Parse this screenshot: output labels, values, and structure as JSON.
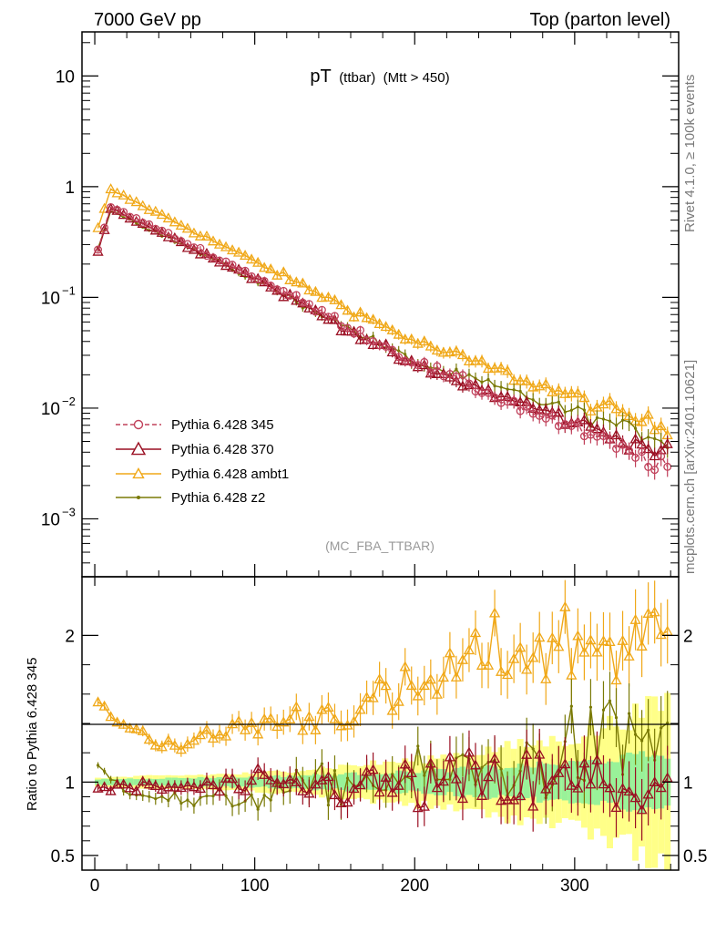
{
  "header": {
    "left": "7000 GeV pp",
    "right": "Top (parton level)",
    "side_top": "Rivet 4.1.0, ≥ 100k events",
    "side_bottom": "mcplots.cern.ch [arXiv:2401.10621]"
  },
  "chart_data": {
    "type": "line",
    "title_main": "pT",
    "title_sub": "(ttbar)",
    "title_cut": "(Mtt > 450)",
    "analysis_tag": "(MC_FBA_TTBAR)",
    "xlabel": "",
    "ylabel_ratio": "Ratio to Pythia 6.428 345",
    "xlim": [
      -8,
      365
    ],
    "ylim_main": [
      0.0003,
      25
    ],
    "ylim_ratio": [
      0.4,
      2.4
    ],
    "x_ticks": [
      {
        "value": 0,
        "label": "0"
      },
      {
        "value": 100,
        "label": "100"
      },
      {
        "value": 200,
        "label": "200"
      },
      {
        "value": 300,
        "label": "300"
      }
    ],
    "y_ticks_main": [
      {
        "value": 10,
        "label": "10",
        "exp": ""
      },
      {
        "value": 1,
        "label": "1",
        "exp": ""
      },
      {
        "value": 0.1,
        "label": "10",
        "exp": "−1"
      },
      {
        "value": 0.01,
        "label": "10",
        "exp": "−2"
      },
      {
        "value": 0.001,
        "label": "10",
        "exp": "−3"
      }
    ],
    "y_ticks_ratio": [
      {
        "value": 2,
        "label": "2"
      },
      {
        "value": 1,
        "label": "1"
      },
      {
        "value": 0.5,
        "label": "0.5"
      }
    ],
    "colors": {
      "s345": "#c0405a",
      "s370": "#9a0f22",
      "ambt1": "#f0a818",
      "z2": "#7a7a06",
      "band_inner": "#99f299",
      "band_outer": "#ffff88"
    },
    "legend": [
      {
        "key": "s345",
        "name": "Pythia 6.428 345"
      },
      {
        "key": "s370",
        "name": "Pythia 6.428 370"
      },
      {
        "key": "ambt1",
        "name": "Pythia 6.428 ambt1"
      },
      {
        "key": "z2",
        "name": "Pythia 6.428 z2"
      }
    ],
    "bin_width": 4,
    "x_first": 2,
    "main_shape": {
      "note": "dsigma/dpT shape per series, values in data units (peak near pT=10)",
      "s345": {
        "first": 0.27,
        "peak": 0.66,
        "at100": 0.155,
        "at200": 0.026,
        "at350": 0.0032
      },
      "s370": {
        "first": 0.26,
        "peak": 0.64,
        "at100": 0.15,
        "at200": 0.024,
        "at350": 0.0042
      },
      "ambt1": {
        "first": 0.42,
        "peak": 0.94,
        "at100": 0.21,
        "at200": 0.04,
        "at350": 0.007
      },
      "z2": {
        "first": 0.28,
        "peak": 0.61,
        "at100": 0.145,
        "at200": 0.026,
        "at350": 0.0055
      }
    },
    "ratio_trend": {
      "ambt1": [
        [
          0,
          1.55
        ],
        [
          20,
          1.38
        ],
        [
          40,
          1.28
        ],
        [
          60,
          1.25
        ],
        [
          90,
          1.38
        ],
        [
          120,
          1.42
        ],
        [
          160,
          1.5
        ],
        [
          200,
          1.6
        ],
        [
          240,
          1.85
        ],
        [
          300,
          1.95
        ],
        [
          360,
          1.95
        ]
      ],
      "s370": [
        [
          0,
          0.96
        ],
        [
          100,
          0.97
        ],
        [
          200,
          0.97
        ],
        [
          360,
          0.98
        ]
      ],
      "z2": [
        [
          0,
          1.12
        ],
        [
          20,
          0.95
        ],
        [
          60,
          0.86
        ],
        [
          100,
          0.9
        ],
        [
          140,
          0.98
        ],
        [
          200,
          1.03
        ],
        [
          260,
          1.1
        ],
        [
          320,
          1.25
        ],
        [
          360,
          1.35
        ]
      ]
    },
    "band_half_width": {
      "inner": [
        [
          0,
          0.02
        ],
        [
          100,
          0.035
        ],
        [
          200,
          0.07
        ],
        [
          300,
          0.13
        ],
        [
          360,
          0.2
        ]
      ],
      "outer": [
        [
          0,
          0.03
        ],
        [
          100,
          0.06
        ],
        [
          200,
          0.15
        ],
        [
          300,
          0.3
        ],
        [
          360,
          0.55
        ]
      ]
    }
  }
}
